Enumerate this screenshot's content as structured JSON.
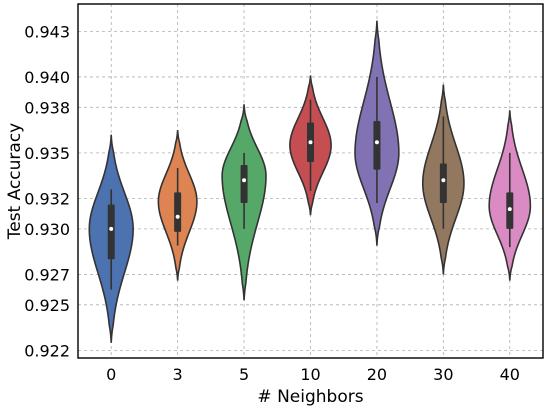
{
  "chart_data": {
    "type": "violin",
    "title": "",
    "xlabel": "# Neighbors",
    "ylabel": "Test Accuracy",
    "ylim": [
      0.9215,
      0.9448
    ],
    "y_ticks": [
      0.922,
      0.925,
      0.927,
      0.93,
      0.932,
      0.935,
      0.938,
      0.94,
      0.943
    ],
    "y_tick_labels": [
      "0.922",
      "0.925",
      "0.927",
      "0.930",
      "0.932",
      "0.935",
      "0.938",
      "0.940",
      "0.943"
    ],
    "grid": true,
    "categories": [
      "0",
      "3",
      "5",
      "10",
      "20",
      "30",
      "40"
    ],
    "violins": [
      {
        "category": "0",
        "color": "#4c72b0",
        "median": 0.93,
        "q1": 0.928,
        "q3": 0.9316,
        "whisker_low": 0.926,
        "whisker_high": 0.9326,
        "kde_min": 0.9225,
        "kde_max": 0.9362,
        "density_peak": 0.93,
        "max_half_width_frac": 0.33
      },
      {
        "category": "3",
        "color": "#dd8452",
        "median": 0.9308,
        "q1": 0.9298,
        "q3": 0.9324,
        "whisker_low": 0.9289,
        "whisker_high": 0.934,
        "kde_min": 0.9266,
        "kde_max": 0.9365,
        "density_peak": 0.9318,
        "max_half_width_frac": 0.29
      },
      {
        "category": "5",
        "color": "#55a868",
        "median": 0.9332,
        "q1": 0.9317,
        "q3": 0.9342,
        "whisker_low": 0.93,
        "whisker_high": 0.935,
        "kde_min": 0.9253,
        "kde_max": 0.9382,
        "density_peak": 0.9335,
        "max_half_width_frac": 0.33
      },
      {
        "category": "10",
        "color": "#c44e52",
        "median": 0.9357,
        "q1": 0.9344,
        "q3": 0.937,
        "whisker_low": 0.9325,
        "whisker_high": 0.9385,
        "kde_min": 0.9309,
        "kde_max": 0.9401,
        "density_peak": 0.9355,
        "max_half_width_frac": 0.31
      },
      {
        "category": "20",
        "color": "#8172b3",
        "median": 0.9357,
        "q1": 0.9339,
        "q3": 0.9371,
        "whisker_low": 0.9317,
        "whisker_high": 0.94,
        "kde_min": 0.9289,
        "kde_max": 0.9437,
        "density_peak": 0.935,
        "max_half_width_frac": 0.33
      },
      {
        "category": "30",
        "color": "#937860",
        "median": 0.9332,
        "q1": 0.9317,
        "q3": 0.9343,
        "whisker_low": 0.93,
        "whisker_high": 0.9374,
        "kde_min": 0.927,
        "kde_max": 0.9395,
        "density_peak": 0.933,
        "max_half_width_frac": 0.31
      },
      {
        "category": "40",
        "color": "#da8bc3",
        "median": 0.9313,
        "q1": 0.93,
        "q3": 0.9324,
        "whisker_low": 0.9288,
        "whisker_high": 0.935,
        "kde_min": 0.9266,
        "kde_max": 0.9378,
        "density_peak": 0.9315,
        "max_half_width_frac": 0.31
      }
    ]
  }
}
